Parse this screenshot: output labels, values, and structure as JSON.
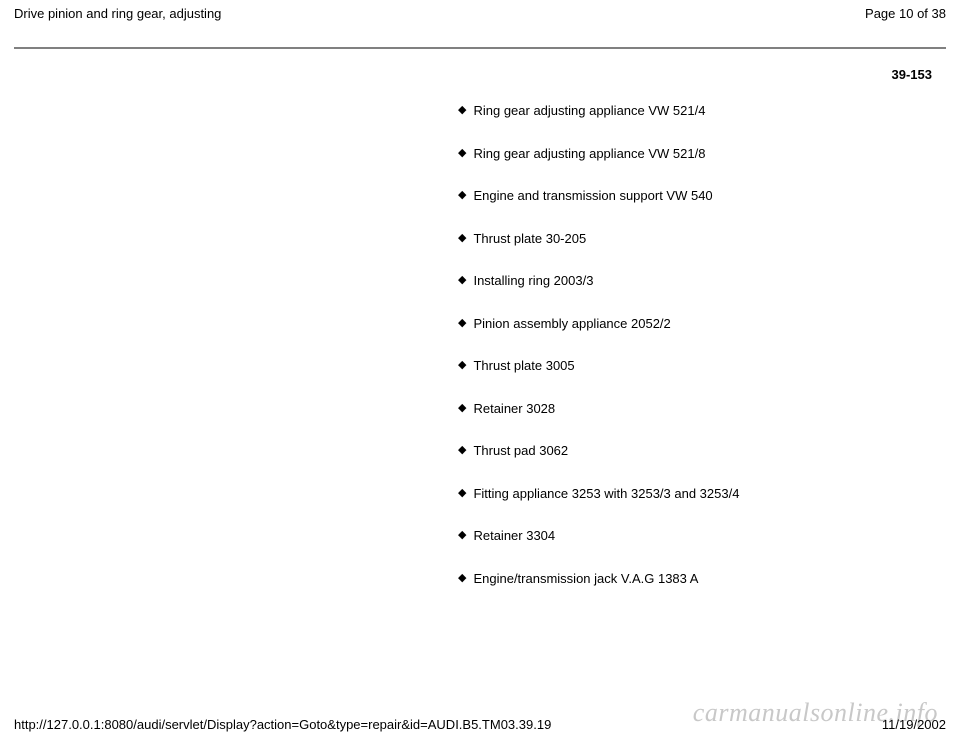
{
  "header": {
    "title": "Drive pinion and ring gear, adjusting",
    "page_indicator": "Page 10 of 38"
  },
  "page_number": "39-153",
  "list": {
    "items": [
      "Ring gear adjusting appliance VW 521/4",
      "Ring gear adjusting appliance VW 521/8",
      "Engine and transmission support VW 540",
      "Thrust plate 30-205",
      "Installing ring 2003/3",
      "Pinion assembly appliance 2052/2",
      "Thrust plate 3005",
      "Retainer 3028",
      "Thrust pad 3062",
      "Fitting appliance 3253 with 3253/3 and 3253/4",
      "Retainer 3304",
      "Engine/transmission jack V.A.G 1383 A"
    ]
  },
  "footer": {
    "url": "http://127.0.0.1:8080/audi/servlet/Display?action=Goto&type=repair&id=AUDI.B5.TM03.39.19",
    "date": "11/19/2002"
  },
  "watermark": "carmanualsonline.info",
  "styling": {
    "background_color": "#ffffff",
    "text_color": "#000000",
    "divider_color": "#808080",
    "watermark_color": "#c8c8c8",
    "body_font_size": 13,
    "bullet_char": "◆"
  }
}
